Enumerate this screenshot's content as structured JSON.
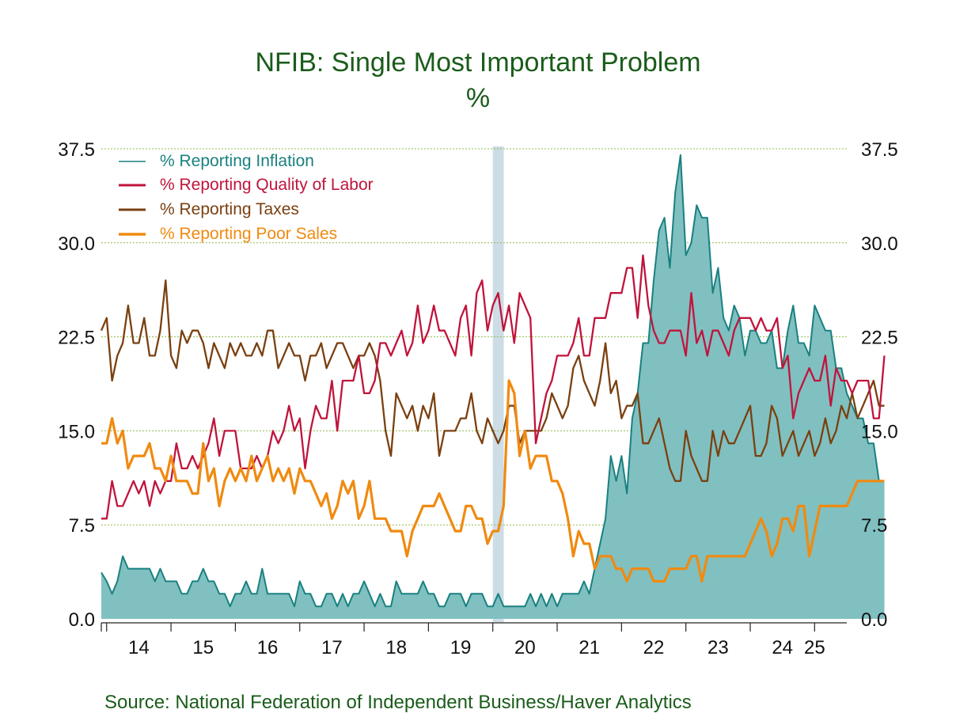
{
  "chart_data": {
    "type": "line",
    "title": "NFIB: Single Most Important Problem",
    "subtitle": "%",
    "source": "Source:  National Federation of Independent Business/Haver Analytics",
    "xlabel": "",
    "ylabel": "%",
    "ylim": [
      0,
      37.5
    ],
    "y_ticks": [
      "0.0",
      "7.5",
      "15.0",
      "22.5",
      "30.0",
      "37.5"
    ],
    "y_tick_values": [
      0,
      7.5,
      15,
      22.5,
      30,
      37.5
    ],
    "x_start": 2013.917,
    "x_end": 2025.5,
    "x_year_labels": [
      "14",
      "15",
      "16",
      "17",
      "18",
      "19",
      "20",
      "21",
      "22",
      "23",
      "24",
      "25"
    ],
    "x_label_values": [
      2014.5,
      2015.5,
      2016.5,
      2017.5,
      2018.5,
      2019.5,
      2020.5,
      2021.5,
      2022.5,
      2023.5,
      2024.5,
      2025.0
    ],
    "x_year_tick_values": [
      2014,
      2015,
      2016,
      2017,
      2018,
      2019,
      2020,
      2021,
      2022,
      2023,
      2024,
      2025
    ],
    "gridlines": true,
    "recession_band": [
      2020.0,
      2020.17
    ],
    "legend_position": "top-left",
    "colors": {
      "inflation_line": "#1a8080",
      "inflation_fill": "#80c0c0",
      "labor": "#c0143c",
      "taxes": "#7a4010",
      "sales": "#f08a10",
      "grid": "#8fbc4a",
      "recession": "#ccdde6",
      "axis": "#222222"
    },
    "series": [
      {
        "name": "% Reporting Inflation",
        "key": "inflation",
        "style": "area",
        "x_start": 2013.917,
        "values": [
          3.7,
          3,
          2,
          3,
          5,
          4,
          4,
          4,
          4,
          4,
          3,
          4,
          3,
          3,
          3,
          2,
          2,
          3,
          3,
          4,
          3,
          3,
          2,
          2,
          1,
          2,
          2,
          3,
          2,
          2,
          4,
          2,
          2,
          2,
          2,
          2,
          1,
          3,
          2,
          2,
          1,
          1,
          2,
          2,
          1,
          2,
          1,
          2,
          2,
          3,
          2,
          1,
          2,
          1,
          1,
          3,
          2,
          2,
          2,
          2,
          3,
          2,
          2,
          1,
          1,
          2,
          2,
          2,
          1,
          2,
          2,
          2,
          1,
          1,
          2,
          1,
          1,
          1,
          1,
          1,
          2,
          1,
          2,
          1,
          2,
          1,
          2,
          2,
          2,
          2,
          3,
          2,
          4,
          6,
          8,
          13,
          11,
          13,
          10,
          16,
          18,
          22,
          22,
          27,
          31,
          32,
          28,
          34,
          37,
          29,
          30,
          33,
          32,
          32,
          26,
          28,
          24,
          23,
          25,
          24,
          21,
          23,
          23,
          22,
          22,
          23,
          20,
          20,
          23,
          25,
          22,
          22,
          21,
          25,
          24,
          23,
          23,
          20,
          20,
          18,
          17,
          16,
          16,
          14,
          14,
          11,
          11
        ]
      },
      {
        "name": "% Reporting Quality of Labor",
        "key": "labor",
        "style": "line",
        "x_start": 2013.917,
        "values": [
          8,
          8,
          11,
          9,
          9,
          10,
          11,
          10,
          11,
          9,
          11,
          10,
          11,
          11,
          14,
          12,
          12,
          13,
          12,
          13,
          14,
          16,
          13,
          15,
          15,
          15,
          12,
          12,
          12,
          13,
          12,
          13,
          15,
          14,
          15,
          17,
          15,
          16,
          12,
          15,
          17,
          16,
          16,
          19,
          15,
          19,
          19,
          19,
          21,
          18,
          18,
          19,
          22,
          22,
          21,
          22,
          23,
          21,
          22,
          25,
          22,
          23,
          25,
          23,
          23,
          22,
          21,
          24,
          25,
          21,
          26,
          27,
          23,
          25,
          26,
          23,
          25,
          22,
          26,
          25,
          24,
          14,
          16,
          18,
          19,
          21,
          21,
          21,
          22,
          24,
          21,
          21,
          24,
          24,
          24,
          26,
          26,
          26,
          28,
          28,
          24,
          29,
          25,
          23,
          22,
          22,
          23,
          23,
          23,
          21,
          26,
          22,
          23,
          21,
          23,
          23,
          22,
          21,
          23,
          24,
          24,
          24,
          23,
          24,
          23,
          23,
          24,
          20,
          21,
          16,
          18,
          19,
          20,
          19,
          19,
          21,
          17,
          20,
          19,
          19,
          18,
          19,
          19,
          19,
          16,
          16,
          21
        ]
      },
      {
        "name": "% Reporting Taxes",
        "key": "taxes",
        "style": "line",
        "x_start": 2013.917,
        "values": [
          23,
          24,
          19,
          21,
          22,
          25,
          22,
          22,
          24,
          21,
          21,
          23,
          27,
          21,
          20,
          23,
          22,
          23,
          23,
          22,
          20,
          22,
          21,
          20,
          22,
          21,
          22,
          21,
          21,
          22,
          21,
          23,
          23,
          20,
          21,
          22,
          21,
          21,
          19,
          21,
          21,
          22,
          20,
          21,
          22,
          22,
          21,
          20,
          21,
          21,
          22,
          21,
          19,
          15,
          13,
          18,
          17,
          16,
          17,
          15,
          17,
          16,
          18,
          13,
          15,
          15,
          15,
          16,
          16,
          18,
          15,
          14,
          16,
          15,
          14,
          15,
          17,
          17,
          14,
          15,
          15,
          15,
          15,
          16,
          18,
          17,
          16,
          17,
          20,
          21,
          19,
          18,
          17,
          19,
          22,
          18,
          19,
          16,
          17,
          17,
          18,
          14,
          14,
          15,
          16,
          14,
          12,
          11,
          11,
          15,
          13,
          12,
          11,
          11,
          15,
          13,
          15,
          14,
          14,
          15,
          16,
          17,
          13,
          13,
          14,
          17,
          16,
          13,
          14,
          15,
          13,
          14,
          15,
          13,
          14,
          16,
          14,
          15,
          17,
          16,
          18,
          16,
          17,
          18,
          19,
          17,
          17
        ]
      },
      {
        "name": "% Reporting Poor Sales",
        "key": "sales",
        "style": "line",
        "x_start": 2013.917,
        "values": [
          14,
          14,
          16,
          14,
          15,
          12,
          13,
          13,
          13,
          14,
          12,
          12,
          11,
          13,
          11,
          11,
          11,
          10,
          10,
          14,
          11,
          12,
          9,
          11,
          12,
          11,
          12,
          11,
          13,
          11,
          12,
          13,
          11,
          12,
          11,
          12,
          10,
          12,
          11,
          11,
          10,
          9,
          10,
          8,
          9,
          11,
          10,
          11,
          8,
          9,
          11,
          8,
          8,
          8,
          7,
          7,
          7,
          5,
          7,
          8,
          9,
          9,
          9,
          10,
          9,
          8,
          7,
          7,
          9,
          9,
          8,
          8,
          6,
          7,
          7,
          9,
          19,
          18,
          13,
          15,
          12,
          13,
          13,
          13,
          11,
          11,
          10,
          8,
          5,
          7,
          6,
          6,
          4,
          5,
          5,
          5,
          4,
          4,
          3,
          4,
          4,
          4,
          4,
          3,
          3,
          3,
          4,
          4,
          4,
          4,
          5,
          5,
          3,
          5,
          5,
          5,
          5,
          5,
          5,
          5,
          5,
          6,
          7,
          8,
          7,
          5,
          6,
          8,
          8,
          7,
          9,
          9,
          5,
          7,
          9,
          9,
          9,
          9,
          9,
          9,
          10,
          11,
          11,
          11,
          11,
          11,
          11
        ]
      }
    ]
  }
}
